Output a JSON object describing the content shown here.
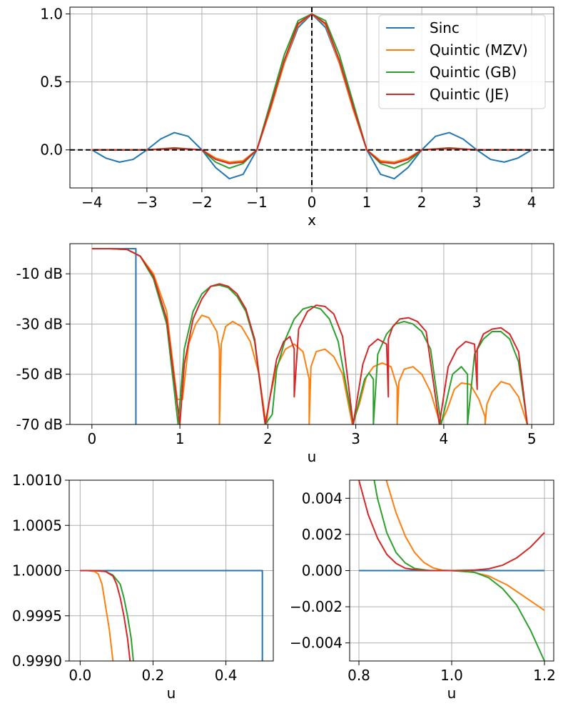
{
  "colors": {
    "Sinc": "#1f77b4",
    "Quintic (MZV)": "#ff7f0e",
    "Quintic (GB)": "#2ca02c",
    "Quintic (JE)": "#d62728",
    "grid": "#b0b0b0",
    "refline": "#000000"
  },
  "chart_data": [
    {
      "id": "kernels",
      "type": "line",
      "xlabel": "x",
      "ylabel": "",
      "xlim": [
        -4.4,
        4.4
      ],
      "ylim": [
        -0.28,
        1.05
      ],
      "xticks": [
        -4,
        -3,
        -2,
        -1,
        0,
        1,
        2,
        3,
        4
      ],
      "xtick_labels": [
        "−4",
        "−3",
        "−2",
        "−1",
        "0",
        "1",
        "2",
        "3",
        "4"
      ],
      "yticks": [
        0.0,
        0.5,
        1.0
      ],
      "ytick_labels": [
        "0.0",
        "0.5",
        "1.0"
      ],
      "grid": true,
      "reference_lines": [
        {
          "axis": "x",
          "value": 0,
          "style": "dashed"
        },
        {
          "axis": "y",
          "value": 0,
          "style": "dashed"
        }
      ],
      "legend": {
        "position": "top-right",
        "entries": [
          "Sinc",
          "Quintic (MZV)",
          "Quintic (GB)",
          "Quintic (JE)"
        ]
      },
      "series": [
        {
          "name": "Sinc",
          "x": [
            -4,
            -3.75,
            -3.5,
            -3.25,
            -3,
            -2.75,
            -2.5,
            -2.25,
            -2,
            -1.75,
            -1.5,
            -1.25,
            -1,
            -0.75,
            -0.5,
            -0.25,
            0,
            0.25,
            0.5,
            0.75,
            1,
            1.25,
            1.5,
            1.75,
            2,
            2.25,
            2.5,
            2.75,
            3,
            3.25,
            3.5,
            3.75,
            4
          ],
          "y": [
            0,
            -0.06,
            -0.09,
            -0.07,
            0,
            0.08,
            0.127,
            0.1,
            0,
            -0.13,
            -0.212,
            -0.18,
            0,
            0.3,
            0.637,
            0.9,
            1,
            0.9,
            0.637,
            0.3,
            0,
            -0.18,
            -0.212,
            -0.13,
            0,
            0.1,
            0.127,
            0.08,
            0,
            -0.07,
            -0.09,
            -0.06,
            0
          ]
        },
        {
          "name": "Quintic (MZV)",
          "x": [
            -4,
            -3,
            -2.5,
            -2,
            -1.75,
            -1.5,
            -1.25,
            -1,
            -0.75,
            -0.5,
            -0.25,
            0,
            0.25,
            0.5,
            0.75,
            1,
            1.25,
            1.5,
            1.75,
            2,
            2.5,
            3,
            4
          ],
          "y": [
            0,
            0,
            0.01,
            0,
            -0.06,
            -0.09,
            -0.08,
            0,
            0.3,
            0.64,
            0.92,
            1,
            0.92,
            0.64,
            0.3,
            0,
            -0.08,
            -0.09,
            -0.06,
            0,
            0.01,
            0,
            0
          ]
        },
        {
          "name": "Quintic (GB)",
          "x": [
            -4,
            -3,
            -2.5,
            -2,
            -1.75,
            -1.5,
            -1.25,
            -1,
            -0.75,
            -0.5,
            -0.25,
            0,
            0.25,
            0.5,
            0.75,
            1,
            1.25,
            1.5,
            1.75,
            2,
            2.5,
            3,
            4
          ],
          "y": [
            0,
            0,
            0.015,
            0,
            -0.09,
            -0.135,
            -0.1,
            0,
            0.35,
            0.7,
            0.95,
            1,
            0.95,
            0.7,
            0.35,
            0,
            -0.1,
            -0.135,
            -0.09,
            0,
            0.015,
            0,
            0
          ]
        },
        {
          "name": "Quintic (JE)",
          "x": [
            -4,
            -3,
            -2.5,
            -2,
            -1.75,
            -1.5,
            -1.25,
            -1,
            -0.75,
            -0.5,
            -0.25,
            0,
            0.25,
            0.5,
            0.75,
            1,
            1.25,
            1.5,
            1.75,
            2,
            2.5,
            3,
            4
          ],
          "y": [
            0,
            0,
            0.012,
            0,
            -0.07,
            -0.1,
            -0.09,
            0,
            0.32,
            0.66,
            0.93,
            1,
            0.93,
            0.66,
            0.32,
            0,
            -0.09,
            -0.1,
            -0.07,
            0,
            0.012,
            0,
            0
          ]
        }
      ]
    },
    {
      "id": "spectrum",
      "type": "line",
      "xlabel": "u",
      "ylabel": "",
      "xlim": [
        -0.25,
        5.25
      ],
      "ylim": [
        -70,
        2
      ],
      "xticks": [
        0,
        1,
        2,
        3,
        4,
        5
      ],
      "xtick_labels": [
        "0",
        "1",
        "2",
        "3",
        "4",
        "5"
      ],
      "yticks": [
        -10,
        -30,
        -50,
        -70
      ],
      "ytick_labels": [
        "-10 dB",
        "-30 dB",
        "-50 dB",
        "-70 dB"
      ],
      "grid": true,
      "series": [
        {
          "name": "Sinc",
          "x": [
            0,
            0.5,
            0.5
          ],
          "y": [
            0,
            0,
            -70
          ]
        },
        {
          "name": "Quintic (MZV)",
          "x": [
            0,
            0.2,
            0.4,
            0.55,
            0.7,
            0.85,
            0.97,
            1.03,
            1.1,
            1.18,
            1.25,
            1.33,
            1.42,
            1.45,
            1.45,
            1.47,
            1.52,
            1.6,
            1.7,
            1.8,
            1.9,
            1.98,
            2.02,
            2.1,
            2.2,
            2.3,
            2.4,
            2.47,
            2.47,
            2.49,
            2.55,
            2.65,
            2.75,
            2.85,
            2.96,
            3.04,
            3.12,
            3.2,
            3.3,
            3.4,
            3.47,
            3.47,
            3.49,
            3.55,
            3.65,
            3.75,
            3.85,
            3.96,
            4.04,
            4.12,
            4.2,
            4.3,
            4.4,
            4.47,
            4.47,
            4.49,
            4.55,
            4.65,
            4.75,
            4.85,
            4.95
          ],
          "y": [
            0,
            0,
            -0.3,
            -3,
            -10,
            -25,
            -60,
            -60,
            -38,
            -30,
            -26.5,
            -27.5,
            -33,
            -40,
            -70,
            -38,
            -31,
            -29,
            -31,
            -37,
            -50,
            -70,
            -60,
            -47,
            -40,
            -38,
            -41,
            -52,
            -70,
            -47,
            -41,
            -40,
            -43,
            -50,
            -70,
            -62,
            -51,
            -47,
            -45.5,
            -47,
            -55,
            -70,
            -53,
            -48,
            -47,
            -50,
            -57,
            -70,
            -64,
            -56,
            -53.5,
            -54,
            -60,
            -67,
            -70,
            -62,
            -57,
            -53,
            -54,
            -59,
            -70
          ]
        },
        {
          "name": "Quintic (GB)",
          "x": [
            0,
            0.2,
            0.4,
            0.55,
            0.7,
            0.85,
            0.98,
            1.05,
            1.15,
            1.25,
            1.35,
            1.45,
            1.55,
            1.65,
            1.75,
            1.85,
            1.97,
            2.05,
            2.1,
            2.2,
            2.3,
            2.4,
            2.5,
            2.6,
            2.7,
            2.8,
            2.97,
            3.1,
            3.15,
            3.2,
            3.2,
            3.25,
            3.35,
            3.45,
            3.55,
            3.65,
            3.75,
            3.85,
            3.97,
            4.1,
            4.2,
            4.27,
            4.27,
            4.35,
            4.45,
            4.55,
            4.65,
            4.75,
            4.85,
            4.95
          ],
          "y": [
            0,
            0,
            -0.3,
            -3,
            -12,
            -30,
            -70,
            -40,
            -25,
            -18,
            -15,
            -14.5,
            -15.5,
            -19,
            -25,
            -37,
            -70,
            -66,
            -48,
            -36,
            -28,
            -24,
            -23,
            -24,
            -28,
            -37,
            -70,
            -52,
            -49.5,
            -52,
            -70,
            -42,
            -34,
            -30,
            -29,
            -30,
            -33,
            -40,
            -70,
            -50,
            -47,
            -50,
            -70,
            -42,
            -36,
            -33,
            -33,
            -36,
            -45,
            -70
          ]
        },
        {
          "name": "Quintic (JE)",
          "x": [
            0,
            0.2,
            0.4,
            0.55,
            0.7,
            0.85,
            1.0,
            1.05,
            1.15,
            1.25,
            1.35,
            1.45,
            1.55,
            1.65,
            1.75,
            1.85,
            1.97,
            2.02,
            2.1,
            2.18,
            2.25,
            2.3,
            2.3,
            2.35,
            2.45,
            2.55,
            2.65,
            2.75,
            2.85,
            2.97,
            3.08,
            3.15,
            3.25,
            3.35,
            3.37,
            3.37,
            3.42,
            3.5,
            3.6,
            3.7,
            3.8,
            3.95,
            4.05,
            4.15,
            4.25,
            4.35,
            4.38,
            4.38,
            4.45,
            4.55,
            4.65,
            4.75,
            4.85,
            4.95
          ],
          "y": [
            0,
            0,
            -0.3,
            -3,
            -11,
            -28,
            -70,
            -46,
            -28,
            -20,
            -15,
            -14,
            -15,
            -18,
            -24,
            -36,
            -70,
            -60,
            -44,
            -37,
            -35,
            -40,
            -59,
            -32,
            -25,
            -22.5,
            -23,
            -26,
            -35,
            -70,
            -46,
            -39,
            -36,
            -38,
            -59,
            -36,
            -31,
            -28,
            -27.5,
            -29,
            -33,
            -70,
            -47,
            -40,
            -37,
            -38,
            -56,
            -40,
            -34,
            -32,
            -31.5,
            -34,
            -41,
            -70
          ]
        }
      ]
    },
    {
      "id": "passband-zoom",
      "type": "line",
      "xlabel": "u",
      "ylabel": "",
      "xlim": [
        -0.03,
        0.53
      ],
      "ylim": [
        0.999,
        1.001
      ],
      "xticks": [
        0.0,
        0.2,
        0.4
      ],
      "xtick_labels": [
        "0.0",
        "0.2",
        "0.4"
      ],
      "yticks": [
        0.999,
        0.9995,
        1.0,
        1.0005,
        1.001
      ],
      "ytick_labels": [
        "0.9990",
        "0.9995",
        "1.0000",
        "1.0005",
        "1.0010"
      ],
      "grid": true,
      "series": [
        {
          "name": "Sinc",
          "x": [
            0,
            0.5,
            0.5
          ],
          "y": [
            1.0,
            1.0,
            0.999
          ]
        },
        {
          "name": "Quintic (MZV)",
          "x": [
            0,
            0.02,
            0.04,
            0.05,
            0.06,
            0.07,
            0.08,
            0.09
          ],
          "y": [
            1.0,
            1.0,
            0.99999,
            0.99996,
            0.99985,
            0.9996,
            0.99935,
            0.999
          ]
        },
        {
          "name": "Quintic (GB)",
          "x": [
            0,
            0.04,
            0.07,
            0.09,
            0.11,
            0.12,
            0.13,
            0.14,
            0.146
          ],
          "y": [
            1.0,
            1.0,
            0.99999,
            0.99995,
            0.99985,
            0.9997,
            0.9995,
            0.99925,
            0.999
          ]
        },
        {
          "name": "Quintic (JE)",
          "x": [
            0,
            0.04,
            0.07,
            0.09,
            0.1,
            0.11,
            0.12,
            0.13,
            0.137
          ],
          "y": [
            1.0,
            1.0,
            0.99999,
            0.99994,
            0.99985,
            0.9997,
            0.9995,
            0.99925,
            0.999
          ]
        }
      ]
    },
    {
      "id": "transition-zoom",
      "type": "line",
      "xlabel": "u",
      "ylabel": "",
      "xlim": [
        0.78,
        1.22
      ],
      "ylim": [
        -0.005,
        0.005
      ],
      "xticks": [
        0.8,
        1.0,
        1.2
      ],
      "xtick_labels": [
        "0.8",
        "1.0",
        "1.2"
      ],
      "yticks": [
        -0.004,
        -0.002,
        0.0,
        0.002,
        0.004
      ],
      "ytick_labels": [
        "−0.004",
        "−0.002",
        "0.000",
        "0.002",
        "0.004"
      ],
      "grid": true,
      "series": [
        {
          "name": "Sinc",
          "x": [
            0.8,
            1.2
          ],
          "y": [
            0.0,
            0.0
          ]
        },
        {
          "name": "Quintic (MZV)",
          "x": [
            0.859,
            0.88,
            0.9,
            0.92,
            0.94,
            0.96,
            0.98,
            1.0,
            1.04,
            1.08,
            1.12,
            1.16,
            1.2
          ],
          "y": [
            0.005,
            0.0032,
            0.0019,
            0.001,
            0.00045,
            0.00015,
            2e-05,
            0.0,
            -5e-05,
            -0.0003,
            -0.0008,
            -0.0015,
            -0.0022
          ]
        },
        {
          "name": "Quintic (GB)",
          "x": [
            0.833,
            0.84,
            0.86,
            0.88,
            0.9,
            0.92,
            0.95,
            1.0,
            1.05,
            1.08,
            1.11,
            1.14,
            1.17,
            1.2
          ],
          "y": [
            0.005,
            0.004,
            0.0021,
            0.001,
            0.00042,
            0.00012,
            1e-05,
            0.0,
            -0.0001,
            -0.0004,
            -0.001,
            -0.0019,
            -0.0033,
            -0.005
          ]
        },
        {
          "name": "Quintic (JE)",
          "x": [
            0.8,
            0.82,
            0.84,
            0.86,
            0.88,
            0.9,
            0.93,
            0.96,
            1.0,
            1.05,
            1.08,
            1.11,
            1.14,
            1.17,
            1.2
          ],
          "y": [
            0.005,
            0.0031,
            0.0018,
            0.0009,
            0.0004,
            0.00013,
            2e-05,
            0.0,
            0.0,
            3e-05,
            0.0001,
            0.0003,
            0.0007,
            0.0013,
            0.0021
          ]
        }
      ]
    }
  ]
}
